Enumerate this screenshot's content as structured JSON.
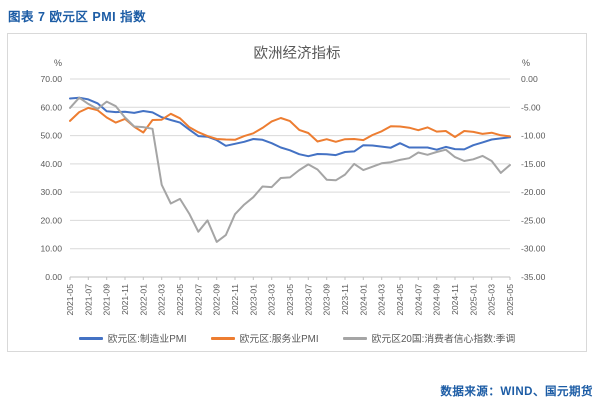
{
  "page": {
    "title": "图表 7 欧元区 PMI 指数",
    "accent_color": "#1C5CA5"
  },
  "footer": {
    "source": "数据来源：WIND、国元期货"
  },
  "chart_data": {
    "type": "line",
    "title": "欧洲经济指标",
    "grid": true,
    "grid_color": "#D9D9D9",
    "axis_line_color": "#BFBFBF",
    "legend_position": "bottom",
    "x": [
      "2021-05",
      "2021-06",
      "2021-07",
      "2021-08",
      "2021-09",
      "2021-10",
      "2021-11",
      "2021-12",
      "2022-01",
      "2022-02",
      "2022-03",
      "2022-04",
      "2022-05",
      "2022-06",
      "2022-07",
      "2022-08",
      "2022-09",
      "2022-10",
      "2022-11",
      "2022-12",
      "2023-01",
      "2023-02",
      "2023-03",
      "2023-04",
      "2023-05",
      "2023-06",
      "2023-07",
      "2023-08",
      "2023-09",
      "2023-10",
      "2023-11",
      "2023-12",
      "2024-01",
      "2024-02",
      "2024-03",
      "2024-04",
      "2024-05",
      "2024-06",
      "2024-07",
      "2024-08",
      "2024-09",
      "2024-10",
      "2024-11",
      "2024-12",
      "2025-01",
      "2025-02",
      "2025-03",
      "2025-04",
      "2025-05"
    ],
    "x_tick_step": 2,
    "left_axis": {
      "unit": "%",
      "min": 0,
      "max": 70,
      "step": 10,
      "ticks": [
        "70.00",
        "60.00",
        "50.00",
        "40.00",
        "30.00",
        "20.00",
        "10.00",
        "0.00"
      ]
    },
    "right_axis": {
      "unit": "%",
      "min": -35,
      "max": 0,
      "step": 5,
      "ticks": [
        "0.00",
        "-5.00",
        "-10.00",
        "-15.00",
        "-20.00",
        "-25.00",
        "-30.00",
        "-35.00"
      ]
    },
    "series": [
      {
        "name": "欧元区:制造业PMI",
        "color": "#4472C4",
        "axis": "left",
        "values": [
          63.1,
          63.4,
          62.8,
          61.4,
          58.6,
          58.3,
          58.4,
          58.0,
          58.7,
          58.2,
          56.5,
          55.5,
          54.6,
          52.1,
          49.8,
          49.6,
          48.4,
          46.4,
          47.1,
          47.8,
          48.8,
          48.5,
          47.3,
          45.8,
          44.8,
          43.4,
          42.7,
          43.5,
          43.4,
          43.1,
          44.2,
          44.4,
          46.6,
          46.5,
          46.1,
          45.7,
          47.3,
          45.8,
          45.8,
          45.8,
          45.0,
          46.0,
          45.2,
          45.1,
          46.6,
          47.6,
          48.6,
          49.0,
          49.4
        ]
      },
      {
        "name": "欧元区:服务业PMI",
        "color": "#ED7D31",
        "axis": "left",
        "values": [
          55.2,
          58.3,
          59.8,
          59.0,
          56.4,
          54.6,
          55.9,
          53.1,
          51.1,
          55.5,
          55.6,
          57.7,
          56.1,
          53.0,
          51.2,
          49.8,
          48.8,
          48.6,
          48.5,
          49.8,
          50.8,
          52.7,
          55.0,
          56.2,
          55.1,
          52.0,
          50.9,
          47.9,
          48.7,
          47.8,
          48.7,
          48.8,
          48.4,
          50.2,
          51.5,
          53.3,
          53.2,
          52.8,
          51.9,
          52.9,
          51.4,
          51.6,
          49.5,
          51.6,
          51.3,
          50.6,
          51.0,
          50.1,
          49.7
        ]
      },
      {
        "name": "欧元区20国:消费者信心指数:季调",
        "color": "#A5A5A5",
        "axis": "right",
        "values": [
          -5.1,
          -3.3,
          -4.4,
          -5.3,
          -4.0,
          -4.8,
          -6.8,
          -8.4,
          -8.5,
          -8.8,
          -18.7,
          -22.0,
          -21.2,
          -23.8,
          -27.0,
          -25.0,
          -28.8,
          -27.6,
          -23.9,
          -22.2,
          -20.9,
          -19.0,
          -19.1,
          -17.5,
          -17.4,
          -16.1,
          -15.1,
          -16.0,
          -17.8,
          -17.9,
          -16.9,
          -15.0,
          -16.1,
          -15.5,
          -14.9,
          -14.7,
          -14.3,
          -14.0,
          -13.0,
          -13.4,
          -12.9,
          -12.5,
          -13.8,
          -14.5,
          -14.2,
          -13.6,
          -14.5,
          -16.6,
          -15.2
        ]
      }
    ]
  }
}
